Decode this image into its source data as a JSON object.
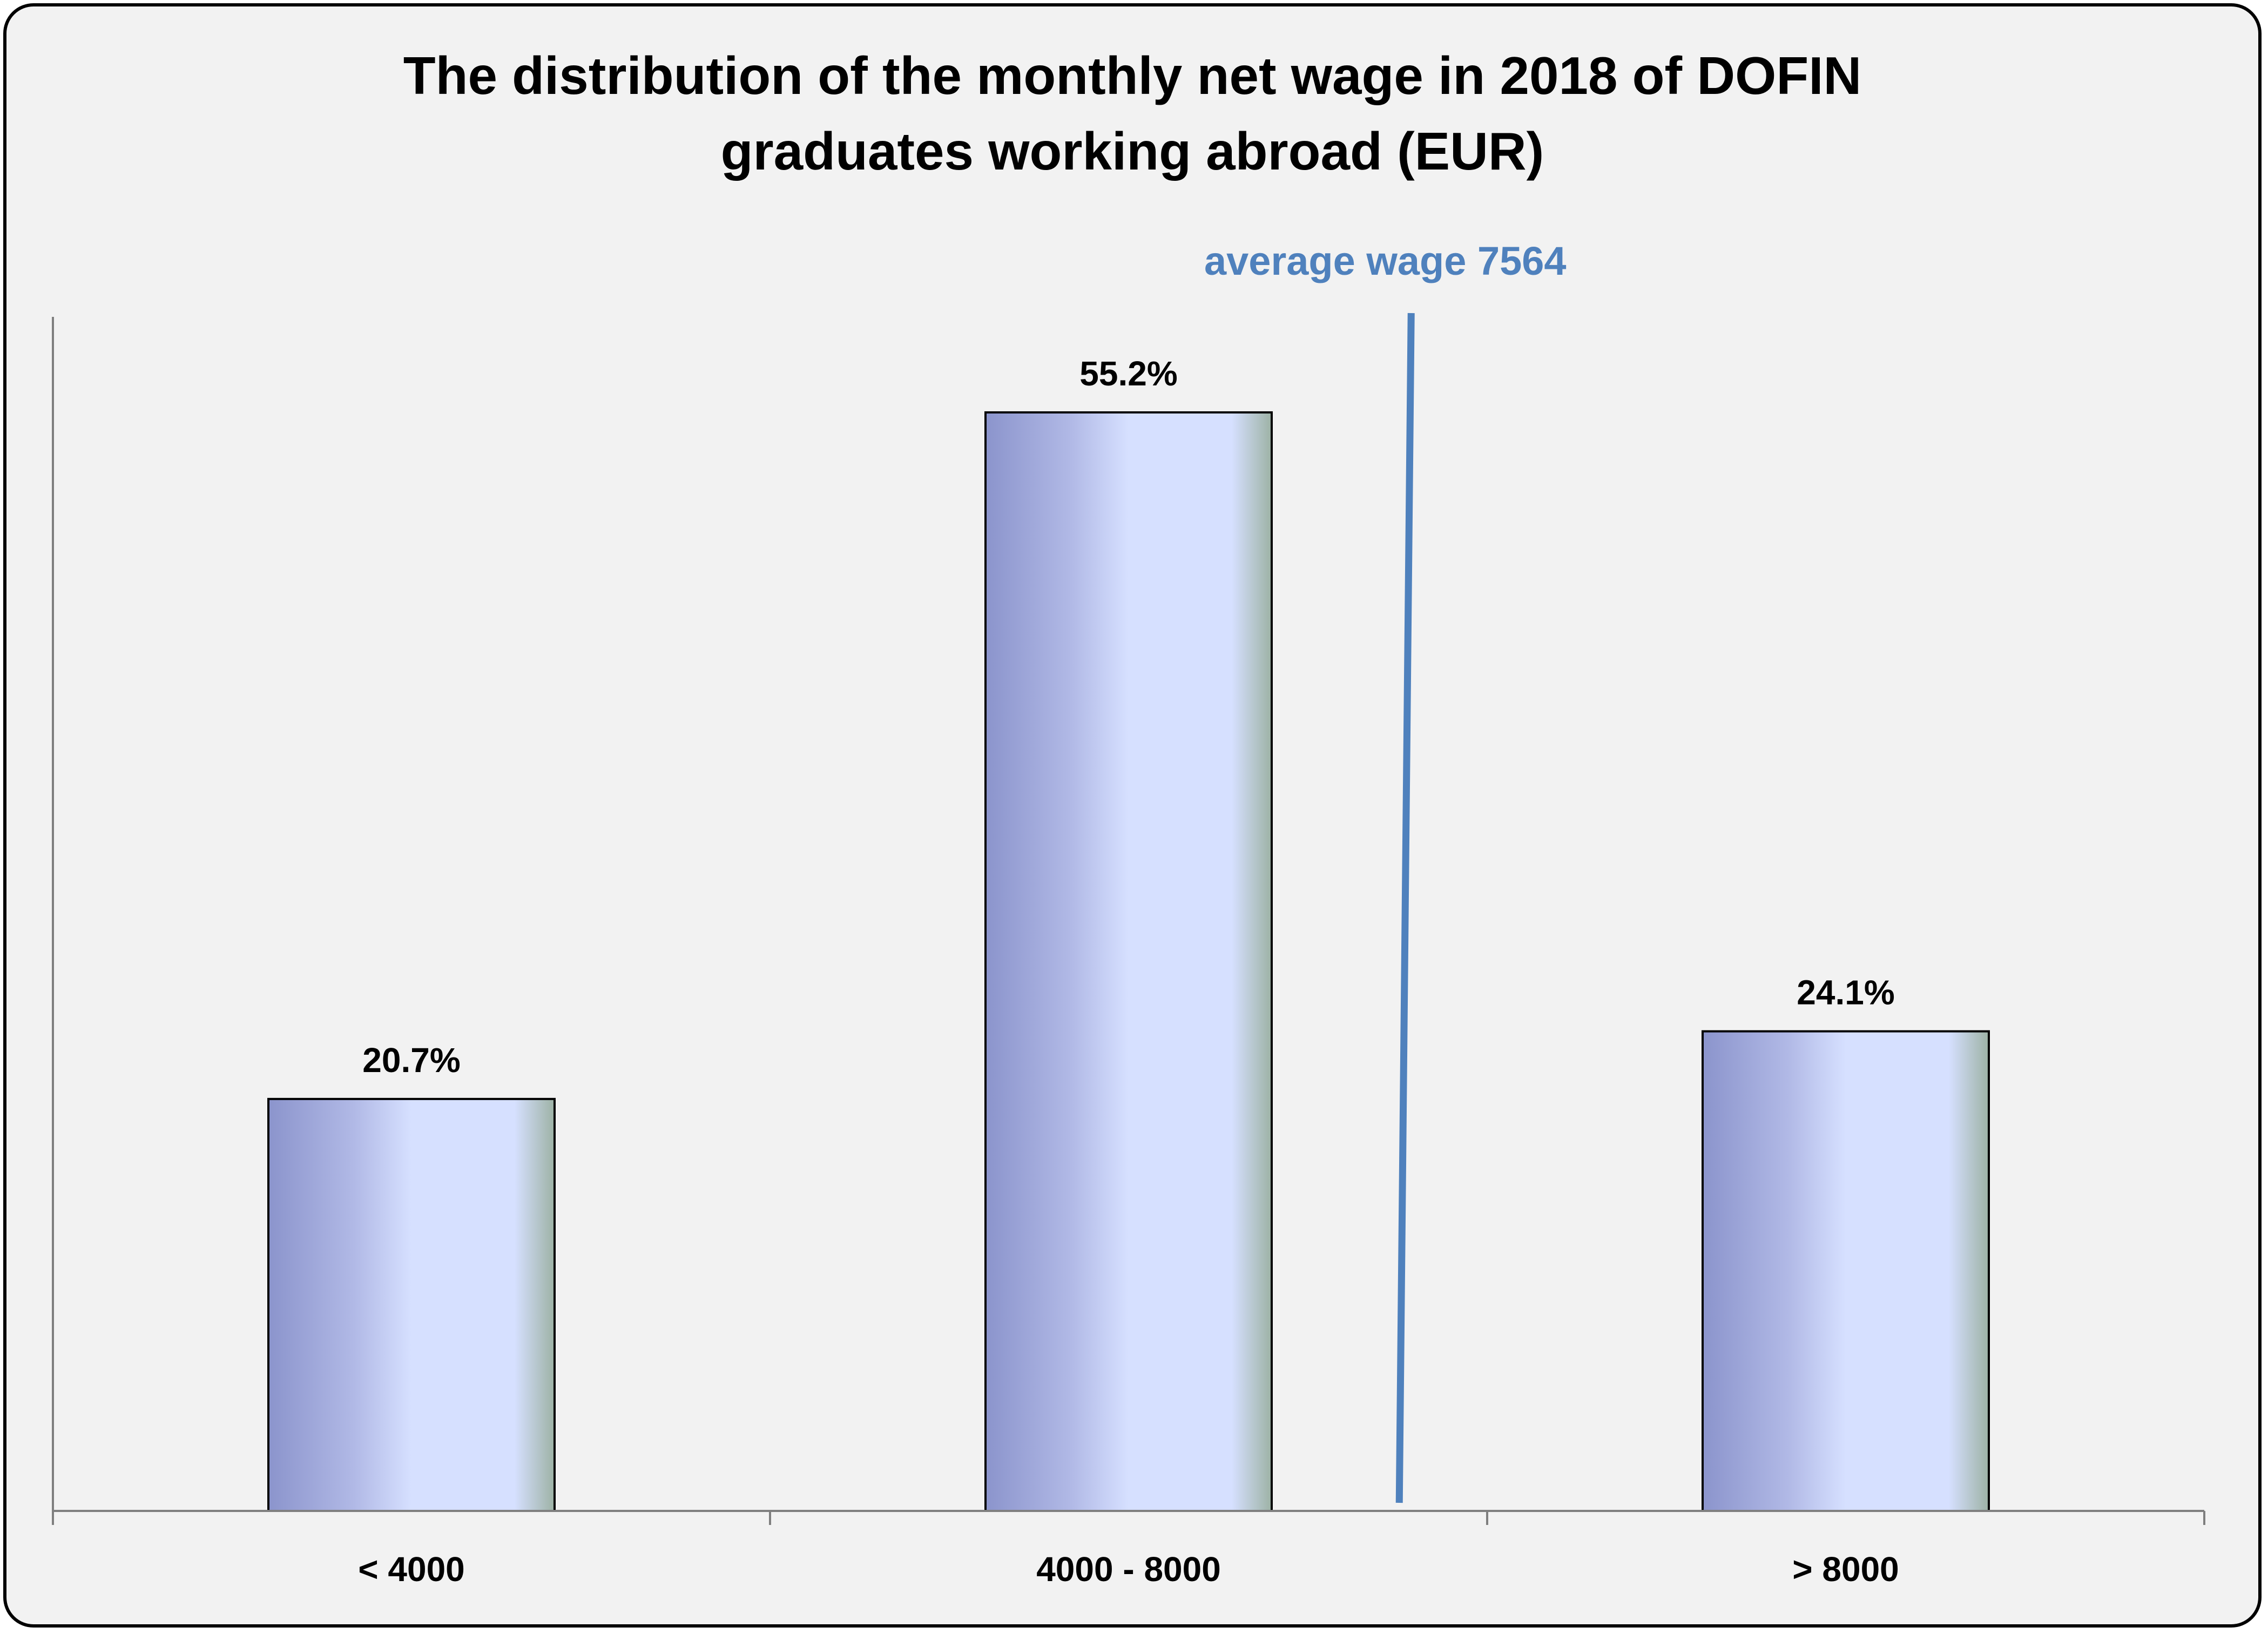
{
  "chart_data": {
    "type": "bar",
    "title": "The distribution of the monthly net wage in 2018 of DOFIN graduates working abroad (EUR)",
    "title_lines": [
      "The distribution of the monthly net wage in 2018 of DOFIN",
      "graduates working abroad (EUR)"
    ],
    "categories": [
      "< 4000",
      "4000 - 8000",
      "> 8000"
    ],
    "values": [
      20.7,
      55.2,
      24.1
    ],
    "value_labels": [
      "20.7%",
      "55.2%",
      "24.1%"
    ],
    "unit": "%",
    "xlabel": "",
    "ylabel": "",
    "ylim": [
      0,
      60
    ],
    "grid": false,
    "legend": "none",
    "annotation": {
      "label": "average wage 7564",
      "value": 7564,
      "color": "#4f81bd"
    },
    "colors": {
      "bar_dark": "#8b94cc",
      "bar_mid": "#b1b9e6",
      "bar_light": "#d6e0ff",
      "bar_edge": "#9db2a5",
      "bar_outline": "#000000",
      "axis": "#7f7f7f",
      "background": "#f2f2f2"
    }
  }
}
